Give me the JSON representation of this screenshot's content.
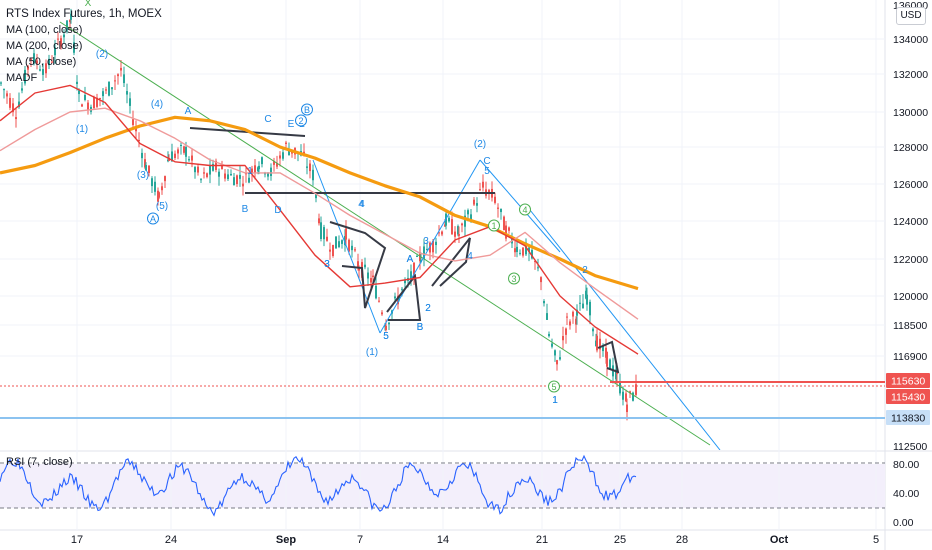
{
  "header": {
    "title": "RTS Index Futures, 1h, MOEX",
    "currency": "USD",
    "indicators": [
      "MA (100, close)",
      "MA (200, close)",
      "MA (50, close)",
      "MADF"
    ],
    "rsi_label": "RSI (7, close)"
  },
  "chart_data": {
    "type": "line",
    "ylim": [
      112500,
      136000
    ],
    "yticks": [
      134000,
      132000,
      130000,
      128000,
      126000,
      124000,
      122000,
      120000,
      118500,
      116900
    ],
    "ytick_partial_top": "136000",
    "ytick_partial_bottom": "112500",
    "x_labels": [
      "17",
      "24",
      "Sep",
      "7",
      "14",
      "21",
      "25",
      "28",
      "Oct",
      "5"
    ],
    "price_tags": [
      {
        "value": "115630",
        "color": "#ef5350"
      },
      {
        "value": "115430",
        "color": "#ef5350"
      },
      {
        "value": "113830",
        "color": "#c7dff7"
      }
    ],
    "series": [
      {
        "name": "MA (200, close)",
        "color": "#f59b10",
        "values": [
          126600,
          127000,
          127700,
          128500,
          129200,
          129700,
          129500,
          129000,
          128000,
          127400,
          126600,
          125900,
          125300,
          124300,
          123700,
          122800,
          122000,
          121100,
          120400
        ]
      },
      {
        "name": "MA (100, close)",
        "color": "#ef9a9a",
        "values": [
          127800,
          129000,
          130000,
          130200,
          129500,
          128500,
          127300,
          126600,
          126600,
          125500,
          124300,
          123300,
          122300,
          121900,
          122200,
          123400,
          121800,
          120400,
          118800
        ]
      },
      {
        "name": "MA (50, close)",
        "color": "#e53935",
        "values": [
          129500,
          131000,
          131400,
          130500,
          128200,
          127200,
          127000,
          127000,
          124600,
          122200,
          120500,
          120700,
          121000,
          123000,
          123700,
          122700,
          120000,
          118400,
          117000
        ]
      }
    ],
    "rsi": {
      "levels": [
        "80.00",
        "40.00",
        "0.00"
      ]
    },
    "wave_labels": [
      "X",
      "(2)",
      "(4)",
      "A",
      "C",
      "E",
      "B",
      "2",
      "(1)",
      "(3)",
      "(5)",
      "A",
      "B",
      "D",
      "1",
      "3",
      "4",
      "(1)",
      "5",
      "A",
      "2",
      "B",
      "3",
      "4",
      "(2)",
      "C",
      "5",
      "2",
      "1",
      "4",
      "3",
      "5",
      "1",
      "2"
    ],
    "circled_labels": [
      "A",
      "B",
      "2",
      "1",
      "4",
      "3",
      "5"
    ]
  }
}
